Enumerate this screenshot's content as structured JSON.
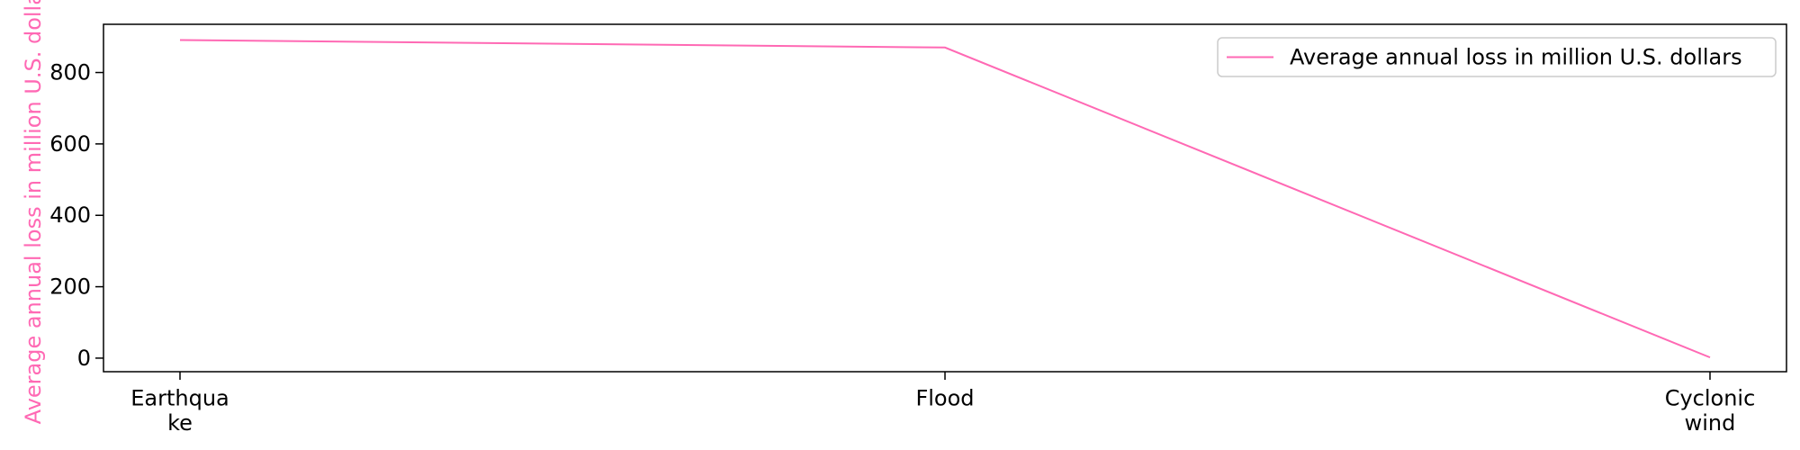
{
  "chart_data": {
    "type": "line",
    "title": "",
    "xlabel": "",
    "ylabel": "Average annual loss in million U.S. dollars",
    "categories": [
      "Earthquake",
      "Flood",
      "Cyclonic wind"
    ],
    "category_display": [
      [
        "Earthqua",
        "ke"
      ],
      [
        "Flood"
      ],
      [
        "Cyclonic",
        "wind"
      ]
    ],
    "series": [
      {
        "name": "Average annual loss in million U.S. dollars",
        "values": [
          891,
          870,
          2
        ],
        "color": "#ff69b4"
      }
    ],
    "ylim": [
      -38,
      935
    ],
    "yticks": [
      0,
      200,
      400,
      600,
      800
    ],
    "grid": false,
    "legend_position": "top-right"
  }
}
